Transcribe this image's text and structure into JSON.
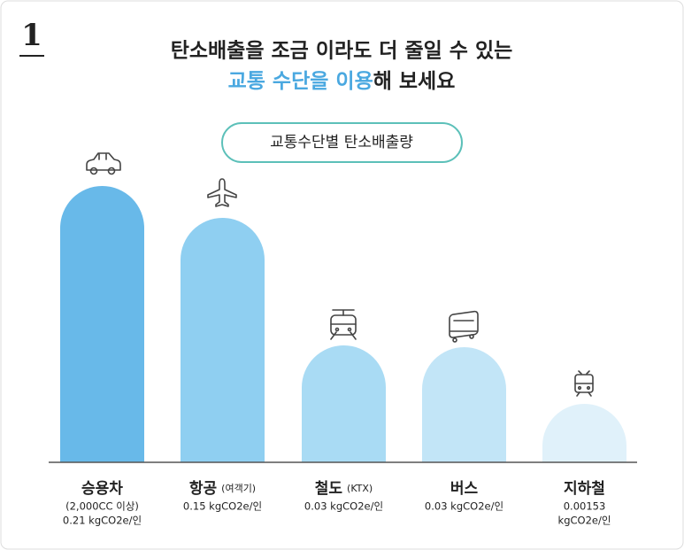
{
  "header": {
    "number": "1",
    "title_line1": "탄소배출을 조금 이라도 더 줄일 수 있는",
    "title_highlight": "교통 수단을 이용",
    "title_rest": "해 보세요"
  },
  "badge": "교통수단별 탄소배출량",
  "items": [
    {
      "name": "승용차",
      "lines": [
        "(2,000CC 이상)",
        "0.21 kgCO2e/인"
      ]
    },
    {
      "name": "항공",
      "extra": "(여객기)",
      "lines": [
        "0.15 kgCO2e/인"
      ]
    },
    {
      "name": "철도",
      "extra": "(KTX)",
      "lines": [
        "0.03 kgCO2e/인"
      ]
    },
    {
      "name": "버스",
      "lines": [
        "0.03 kgCO2e/인"
      ]
    },
    {
      "name": "지하철",
      "lines": [
        "0.00153",
        "kgCO2e/인"
      ]
    }
  ]
}
